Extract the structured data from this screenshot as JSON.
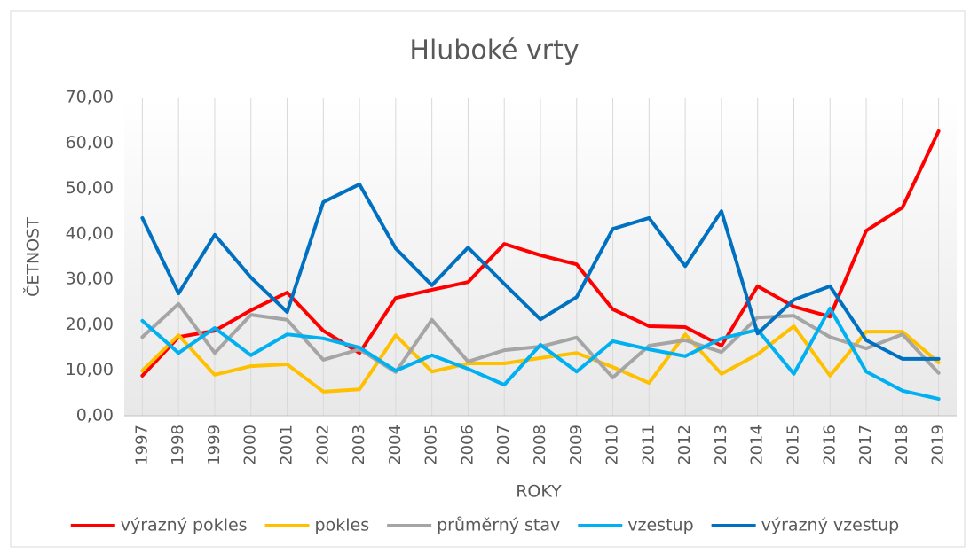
{
  "chart_data": {
    "type": "line",
    "title": "Hluboké vrty",
    "x_label": "ROKY",
    "y_label": "ČETNOST",
    "categories": [
      "1997",
      "1998",
      "1999",
      "2000",
      "2001",
      "2002",
      "2003",
      "2004",
      "2005",
      "2006",
      "2007",
      "2008",
      "2009",
      "2010",
      "2011",
      "2012",
      "2013",
      "2014",
      "2015",
      "2016",
      "2017",
      "2018",
      "2019"
    ],
    "series": [
      {
        "name": "výrazný pokles",
        "color": "#ff0000",
        "values": [
          8.8,
          17.3,
          18.7,
          23.2,
          27.1,
          18.7,
          13.8,
          25.9,
          27.7,
          29.4,
          37.8,
          35.3,
          33.3,
          23.4,
          19.7,
          19.5,
          15.4,
          28.5,
          24.0,
          21.8,
          40.7,
          45.8,
          62.6
        ]
      },
      {
        "name": "pokles",
        "color": "#ffc000",
        "values": [
          9.9,
          17.7,
          9.0,
          10.9,
          11.3,
          5.3,
          5.8,
          17.7,
          9.7,
          11.5,
          11.5,
          12.7,
          13.8,
          10.7,
          7.2,
          17.9,
          9.2,
          13.5,
          19.7,
          8.8,
          18.5,
          18.5,
          11.7
        ]
      },
      {
        "name": "průměrný stav",
        "color": "#a5a5a5",
        "values": [
          17.3,
          24.6,
          13.8,
          22.2,
          21.1,
          12.3,
          14.6,
          9.6,
          21.1,
          11.9,
          14.4,
          15.2,
          17.2,
          8.4,
          15.4,
          16.6,
          14.0,
          21.6,
          22.0,
          17.3,
          14.8,
          17.9,
          9.4
        ]
      },
      {
        "name": "vzestup",
        "color": "#00b0f0",
        "values": [
          20.9,
          13.8,
          19.3,
          13.3,
          17.9,
          17.0,
          15.0,
          9.9,
          13.3,
          10.3,
          6.8,
          15.6,
          9.7,
          16.4,
          14.6,
          13.1,
          17.0,
          18.9,
          9.2,
          23.6,
          9.7,
          5.5,
          3.7
        ]
      },
      {
        "name": "výrazný vzestup",
        "color": "#0070c0",
        "values": [
          43.5,
          26.9,
          39.8,
          30.4,
          22.8,
          47.0,
          50.9,
          36.8,
          28.7,
          37.0,
          29.0,
          21.2,
          26.1,
          41.1,
          43.5,
          32.9,
          45.0,
          18.1,
          25.5,
          28.5,
          16.6,
          12.5,
          12.5
        ]
      }
    ],
    "ylim": [
      0,
      70
    ],
    "yticks": [
      {
        "value": 0,
        "label": "0,00"
      },
      {
        "value": 10,
        "label": "10,00"
      },
      {
        "value": 20,
        "label": "20,00"
      },
      {
        "value": 30,
        "label": "30,00"
      },
      {
        "value": 40,
        "label": "40,00"
      },
      {
        "value": 50,
        "label": "50,00"
      },
      {
        "value": 60,
        "label": "60,00"
      },
      {
        "value": 70,
        "label": "70,00"
      }
    ],
    "grid": true,
    "legend": "bottom"
  }
}
